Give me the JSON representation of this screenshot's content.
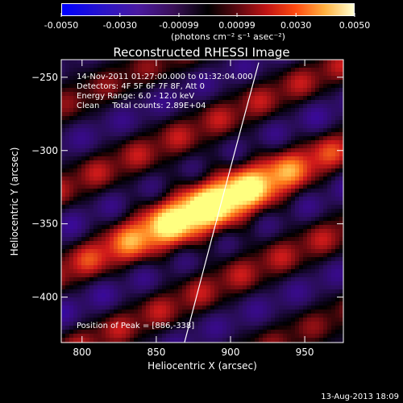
{
  "colorbar": {
    "tick_labels": [
      "-0.0050",
      "-0.0030",
      "-0.00099",
      "0.00099",
      "0.0030",
      "0.0050"
    ],
    "tick_values": [
      -0.005,
      -0.003,
      -0.00099,
      0.00099,
      0.003,
      0.005
    ],
    "range": [
      -0.005,
      0.005
    ],
    "units": "(photons cm⁻² s⁻¹ asec⁻²)"
  },
  "chart_data": {
    "type": "heatmap",
    "title": "Reconstructed RHESSI Image",
    "xlabel": "Heliocentric X (arcsec)",
    "ylabel": "Heliocentric Y (arcsec)",
    "xlim": [
      786,
      976
    ],
    "ylim": [
      -431,
      -238
    ],
    "x_ticks": [
      800,
      850,
      900,
      950
    ],
    "y_ticks": [
      -250,
      -300,
      -350,
      -400
    ],
    "peak": [
      886,
      -338
    ],
    "limb_curve": [
      [
        869,
        -431
      ],
      [
        895,
        -330
      ],
      [
        919,
        -240
      ]
    ],
    "colormap": [
      "#0000ff",
      "#3a0a92",
      "#2a0d5a",
      "#000000",
      "#6a0a10",
      "#d01a1a",
      "#ff7a1a",
      "#ffff80"
    ],
    "annotations": [
      "14-Nov-2011 01:27:00.000 to 01:32:04.000",
      "Detectors: 4F 5F 6F 7F 8F, Att 0",
      "Energy Range: 6.0 - 12.0 keV",
      "Clean     Total counts: 2.89E+04"
    ],
    "peak_label": "Position of Peak = [886,-338]"
  },
  "footer": {
    "date": "13-Aug-2013 18:09"
  }
}
